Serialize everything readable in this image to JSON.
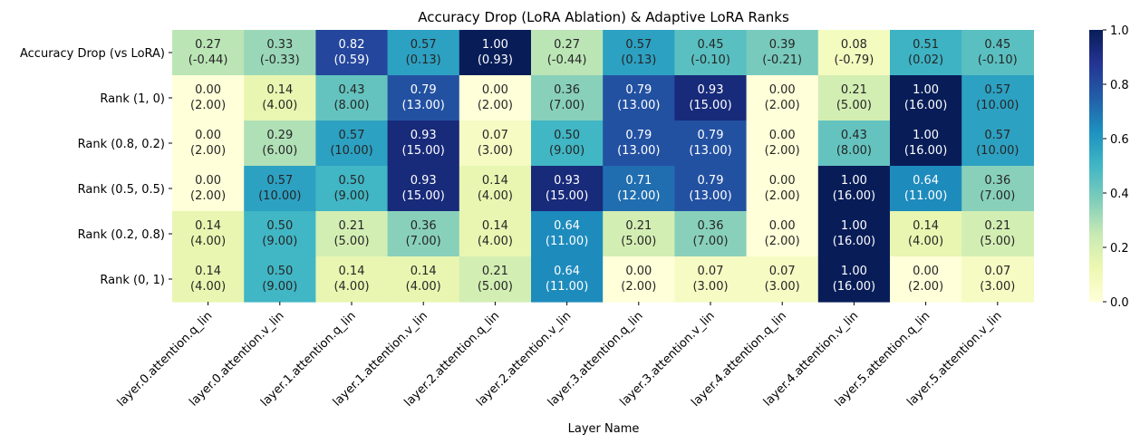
{
  "chart_data": {
    "type": "heatmap",
    "title": "Accuracy Drop (LoRA Ablation) & Adaptive LoRA Ranks",
    "xlabel": "Layer Name",
    "ylabel": "",
    "columns": [
      "layer.0.attention.q_lin",
      "layer.0.attention.v_lin",
      "layer.1.attention.q_lin",
      "layer.1.attention.v_lin",
      "layer.2.attention.q_lin",
      "layer.2.attention.v_lin",
      "layer.3.attention.q_lin",
      "layer.3.attention.v_lin",
      "layer.4.attention.q_lin",
      "layer.4.attention.v_lin",
      "layer.5.attention.q_lin",
      "layer.5.attention.v_lin"
    ],
    "rows": [
      {
        "label": "Accuracy Drop (vs LoRA)",
        "values": [
          0.27,
          0.33,
          0.82,
          0.57,
          1.0,
          0.27,
          0.57,
          0.45,
          0.39,
          0.08,
          0.51,
          0.45
        ],
        "annotations": [
          -0.44,
          -0.33,
          0.59,
          0.13,
          0.93,
          -0.44,
          0.13,
          -0.1,
          -0.21,
          -0.79,
          0.02,
          -0.1
        ]
      },
      {
        "label": "Rank (1, 0)",
        "values": [
          0.0,
          0.14,
          0.43,
          0.79,
          0.0,
          0.36,
          0.79,
          0.93,
          0.0,
          0.21,
          1.0,
          0.57
        ],
        "annotations": [
          2.0,
          4.0,
          8.0,
          13.0,
          2.0,
          7.0,
          13.0,
          15.0,
          2.0,
          5.0,
          16.0,
          10.0
        ]
      },
      {
        "label": "Rank (0.8, 0.2)",
        "values": [
          0.0,
          0.29,
          0.57,
          0.93,
          0.07,
          0.5,
          0.79,
          0.79,
          0.0,
          0.43,
          1.0,
          0.57
        ],
        "annotations": [
          2.0,
          6.0,
          10.0,
          15.0,
          3.0,
          9.0,
          13.0,
          13.0,
          2.0,
          8.0,
          16.0,
          10.0
        ]
      },
      {
        "label": "Rank (0.5, 0.5)",
        "values": [
          0.0,
          0.57,
          0.5,
          0.93,
          0.14,
          0.93,
          0.71,
          0.79,
          0.0,
          1.0,
          0.64,
          0.36
        ],
        "annotations": [
          2.0,
          10.0,
          9.0,
          15.0,
          4.0,
          15.0,
          12.0,
          13.0,
          2.0,
          16.0,
          11.0,
          7.0
        ]
      },
      {
        "label": "Rank (0.2, 0.8)",
        "values": [
          0.14,
          0.5,
          0.21,
          0.36,
          0.14,
          0.64,
          0.21,
          0.36,
          0.0,
          1.0,
          0.14,
          0.21
        ],
        "annotations": [
          4.0,
          9.0,
          5.0,
          7.0,
          4.0,
          11.0,
          5.0,
          7.0,
          2.0,
          16.0,
          4.0,
          5.0
        ]
      },
      {
        "label": "Rank (0, 1)",
        "values": [
          0.14,
          0.5,
          0.14,
          0.14,
          0.21,
          0.64,
          0.0,
          0.07,
          0.07,
          1.0,
          0.0,
          0.07
        ],
        "annotations": [
          4.0,
          9.0,
          4.0,
          4.0,
          5.0,
          11.0,
          2.0,
          3.0,
          3.0,
          16.0,
          2.0,
          3.0
        ]
      }
    ],
    "colorbar": {
      "colormap": "YlGnBu",
      "range": [
        0.0,
        1.0
      ],
      "ticks": [
        "0.0",
        "0.2",
        "0.4",
        "0.6",
        "0.8",
        "1.0"
      ]
    },
    "text_colors": {
      "dark": "#262626",
      "light": "#ffffff"
    }
  }
}
